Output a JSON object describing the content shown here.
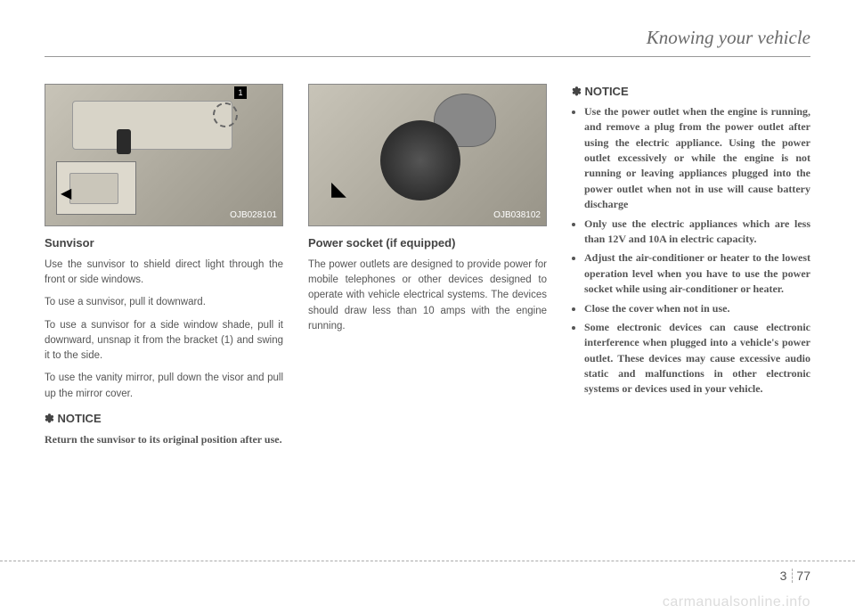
{
  "header": {
    "title": "Knowing your vehicle"
  },
  "col1": {
    "figure_code": "OJB028101",
    "callout_1": "1",
    "title": "Sunvisor",
    "p1": "Use the sunvisor to shield direct light through the front or side windows.",
    "p2": "To use a sunvisor, pull it downward.",
    "p3": "To use a sunvisor for a side window shade, pull it downward, unsnap it from the bracket (1) and swing it to the side.",
    "p4": "To use the vanity mirror, pull down the visor and pull up the mirror cover.",
    "notice_label": "✽ NOTICE",
    "notice_body": "Return the sunvisor to its original position after use."
  },
  "col2": {
    "figure_code": "OJB038102",
    "title": "Power socket (if equipped)",
    "p1": "The power outlets are designed to provide power for mobile telephones or other devices designed to operate with vehicle electrical systems. The devices should draw less than 10 amps with the engine running."
  },
  "col3": {
    "notice_label": "✽ NOTICE",
    "items": [
      "Use the power outlet when the engine is running, and remove a plug from the power outlet after using the electric appliance. Using the power outlet excessively or while the engine is not running or leaving appliances plugged into the power outlet when not in use will cause battery discharge",
      "Only use the electric appliances which are less than 12V and 10A in electric capacity.",
      "Adjust the air-conditioner or heater to the lowest operation level when you have to use the power socket while using air-conditioner or heater.",
      "Close the cover when not in use.",
      "Some electronic devices can cause electronic interference when plugged into a vehicle's power outlet. These devices may cause excessive audio static and malfunctions in other electronic systems or devices used in your vehicle."
    ]
  },
  "footer": {
    "chapter": "3",
    "page": "77",
    "watermark": "carmanualsonline.info"
  }
}
